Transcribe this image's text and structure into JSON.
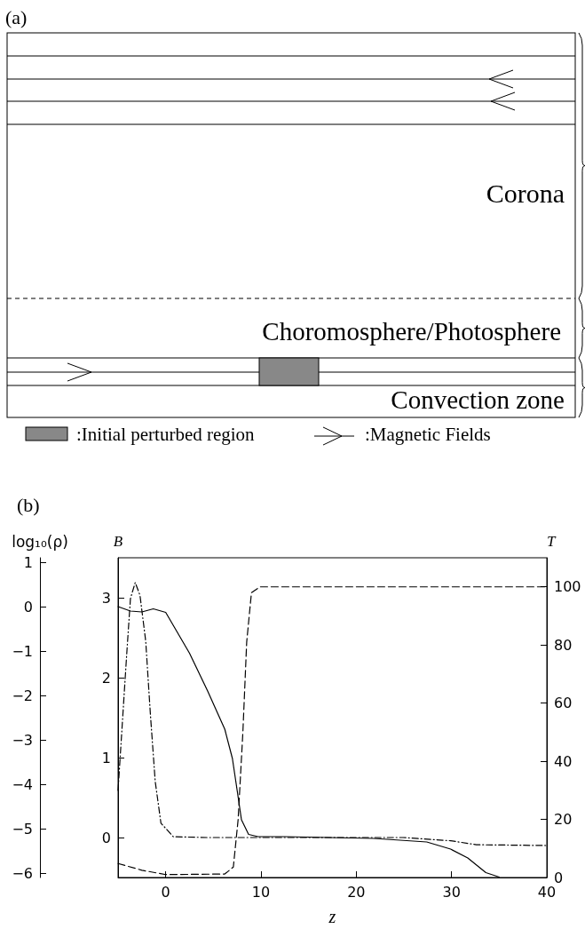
{
  "chart_data": [
    {
      "type": "other",
      "title": "(a)",
      "annotations": [
        "Corona",
        "Choromosphere/Photosphere",
        "Convection zone",
        ":Initial perturbed region",
        ":Magnetic Fields"
      ]
    },
    {
      "type": "line",
      "title": "(b)",
      "xlabel": "z",
      "ylabel": "B",
      "y2label": "T",
      "y3label": "log₁₀(ρ)",
      "xlim": [
        -5,
        40
      ],
      "xticks": [
        0,
        10,
        20,
        30,
        40
      ],
      "ylim": [
        -0.5,
        3.5
      ],
      "yticks": [
        0,
        1,
        2,
        3
      ],
      "y2lim": [
        0,
        110
      ],
      "y2ticks": [
        0,
        20,
        40,
        60,
        80,
        100
      ],
      "y3lim": [
        -6.1,
        1.1
      ],
      "y3ticks": [
        -6,
        -5,
        -4,
        -3,
        -2,
        -1,
        0,
        1
      ],
      "marker": "none",
      "grid": false,
      "series": [
        {
          "color": "#000000",
          "line_style": "solid",
          "axis": "y3",
          "x": [
            -5,
            -3.7,
            -2.5,
            -1.3,
            0,
            2.5,
            4.4,
            6.2,
            7,
            7.5,
            7.95,
            8.7,
            9.7,
            12.5,
            21.8,
            27.4,
            29.9,
            31.7,
            33.6,
            35
          ],
          "values": [
            0,
            -0.1,
            -0.12,
            -0.05,
            -0.13,
            -1.05,
            -1.9,
            -2.76,
            -3.42,
            -4.14,
            -4.8,
            -5.13,
            -5.18,
            -5.18,
            -5.22,
            -5.3,
            -5.46,
            -5.66,
            -5.99,
            -6.09
          ]
        },
        {
          "color": "#000000",
          "line_style": "dotted",
          "axis": "y",
          "x": [
            -5,
            -4.6,
            -4.1,
            -3.7,
            -3.2,
            -2.7,
            -2.1,
            -1.6,
            -1.1,
            -0.5,
            0.8,
            4.4,
            24.9,
            29.9,
            32.6,
            40
          ],
          "values": [
            0.59,
            1.34,
            2.28,
            2.99,
            3.19,
            3.03,
            2.46,
            1.53,
            0.7,
            0.18,
            0.01,
            0,
            0,
            -0.04,
            -0.09,
            -0.1
          ]
        },
        {
          "color": "#000000",
          "line_style": "dashed",
          "axis": "y2",
          "x": [
            -5,
            -2.5,
            0,
            6.2,
            7.1,
            7.6,
            8.1,
            8.5,
            9,
            9.9,
            40
          ],
          "values": [
            4.8,
            2.5,
            1,
            1.2,
            3.6,
            19.9,
            50,
            81,
            98,
            100,
            100
          ]
        }
      ]
    }
  ]
}
